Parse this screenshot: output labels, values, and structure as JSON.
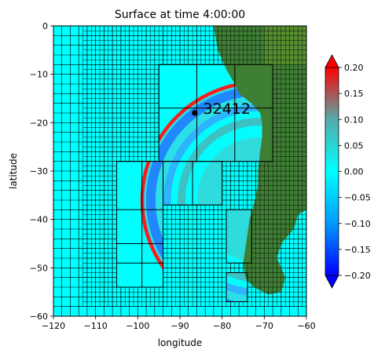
{
  "chart_data": {
    "type": "heatmap",
    "title": "Surface at time 4:00:00",
    "xlabel": "longitude",
    "ylabel": "latitude",
    "xlim": [
      -120,
      -60
    ],
    "ylim": [
      -60,
      0
    ],
    "xticks": [
      -120,
      -110,
      -100,
      -90,
      -80,
      -70,
      -60
    ],
    "yticks": [
      0,
      -10,
      -20,
      -30,
      -40,
      -50,
      -60
    ],
    "grid": false,
    "colorbar": {
      "range": [
        -0.2,
        0.2
      ],
      "ticks": [
        "0.20",
        "0.15",
        "0.10",
        "0.05",
        "0.00",
        "−0.05",
        "−0.10",
        "−0.15",
        "−0.20"
      ],
      "extend": "both",
      "colors": [
        "#0000ff",
        "#0099ff",
        "#00ffff",
        "#55aaaa",
        "#ff0000"
      ]
    },
    "annotations": [
      {
        "text": "32412",
        "x": -84.5,
        "y": -18.0,
        "marker": "dot"
      }
    ],
    "refinement_patches": [
      {
        "x0": -95,
        "x1": -68,
        "y0": -28,
        "y1": -8
      },
      {
        "x0": -105,
        "x1": -94,
        "y0": -54,
        "y1": -28
      },
      {
        "x0": -94,
        "x1": -80,
        "y0": -37,
        "y1": -28
      },
      {
        "x0": -79,
        "x1": -73,
        "y0": -49,
        "y1": -38
      },
      {
        "x0": -79,
        "x1": -74,
        "y0": -57,
        "y1": -51
      }
    ],
    "colors": {
      "ocean": "#00ffff",
      "land": "#3f7f35",
      "wave_front": "#ff0000",
      "trough": "#0080ff"
    }
  }
}
